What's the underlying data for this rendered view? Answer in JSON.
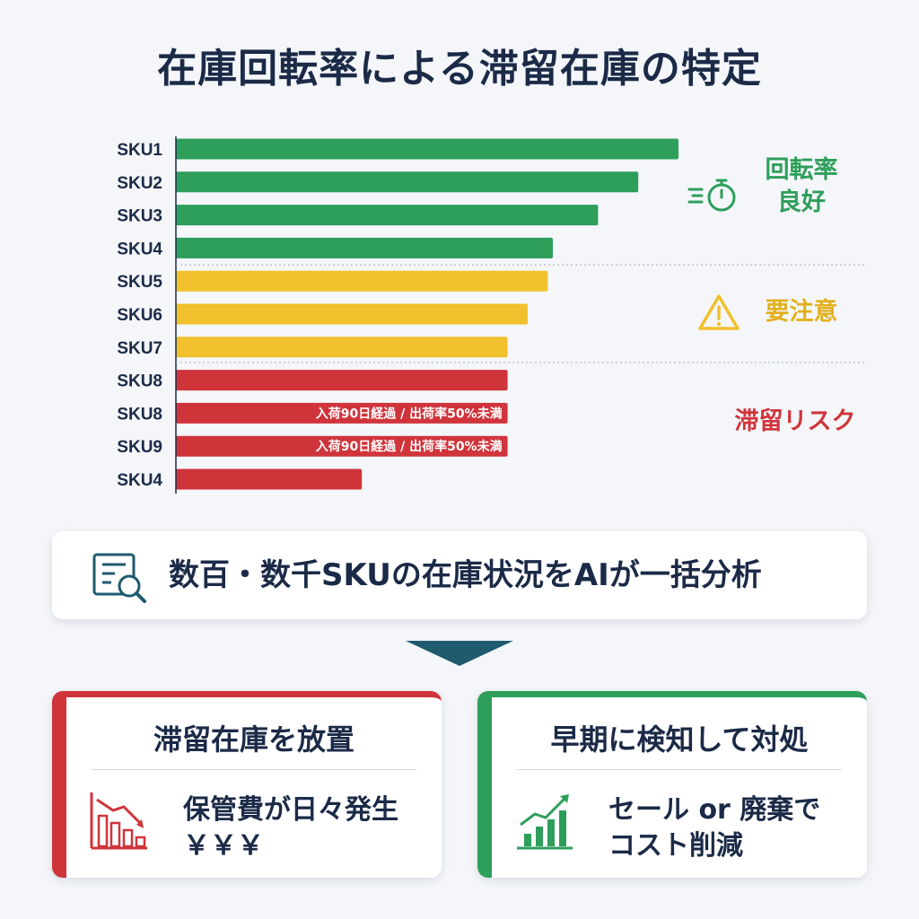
{
  "title": "在庫回転率による滞留在庫の特定",
  "chart_data": {
    "type": "bar",
    "orientation": "horizontal",
    "title": "在庫回転率による滞留在庫の特定",
    "categories": [
      "SKU1",
      "SKU2",
      "SKU3",
      "SKU4",
      "SKU5",
      "SKU6",
      "SKU7",
      "SKU8",
      "SKU8",
      "SKU9",
      "SKU4"
    ],
    "values": [
      100,
      92,
      84,
      75,
      74,
      70,
      66,
      66,
      66,
      66,
      37
    ],
    "groups": [
      "good",
      "good",
      "good",
      "good",
      "warn",
      "warn",
      "warn",
      "risk",
      "risk",
      "risk",
      "risk"
    ],
    "bar_notes": [
      "",
      "",
      "",
      "",
      "",
      "",
      "",
      "",
      "入荷90日経過 / 出荷率50%未満",
      "入荷90日経過 / 出荷率50%未満",
      ""
    ],
    "colors": {
      "good": "#2e9e5b",
      "warn": "#f0c12c",
      "risk": "#d0343b"
    },
    "xlim": [
      0,
      100
    ],
    "xlabel": "",
    "ylabel": "",
    "grid": false,
    "legend": "right-side group labels"
  },
  "status": {
    "good_line1": "回転率",
    "good_line2": "良好",
    "warn": "要注意",
    "risk": "滞留リスク"
  },
  "icons": {
    "good": "stopwatch-icon",
    "warn": "warning-triangle-icon",
    "banner": "document-search-icon",
    "left_card": "declining-bar-chart-icon",
    "right_card": "rising-bar-chart-icon"
  },
  "banner": {
    "text": "数百・数千SKUの在庫状況をAIが一括分析"
  },
  "cards": {
    "left": {
      "title": "滞留在庫を放置",
      "line1": "保管費が日々発生",
      "line2": "￥￥￥"
    },
    "right": {
      "title": "早期に検知して対処",
      "line1": "セール or 廃棄で",
      "line2": "コスト削減"
    }
  }
}
